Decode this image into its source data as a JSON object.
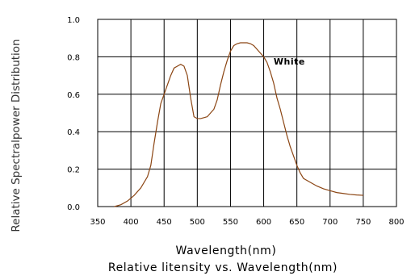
{
  "chart_data": {
    "type": "line",
    "title": "",
    "subtitle": "Relative litensity vs. Wavelength(nm)",
    "xlabel": "Wavelength(nm)",
    "ylabel": "Relative Spectralpower Distribution",
    "xlim": [
      350,
      800
    ],
    "ylim": [
      0,
      1.0
    ],
    "x_ticks": [
      "350",
      "400",
      "450",
      "500",
      "550",
      "600",
      "650",
      "700",
      "750",
      "800"
    ],
    "y_ticks": [
      "0.0",
      "0.2",
      "0.4",
      "0.6",
      "0.8",
      "1.0"
    ],
    "grid": true,
    "line_color": "#8B4513",
    "series": [
      {
        "name": "White",
        "x": [
          375,
          385,
          395,
          405,
          415,
          425,
          430,
          435,
          440,
          445,
          450,
          455,
          460,
          465,
          470,
          475,
          480,
          485,
          490,
          495,
          500,
          505,
          510,
          515,
          520,
          525,
          530,
          535,
          540,
          545,
          550,
          555,
          560,
          565,
          570,
          575,
          580,
          585,
          590,
          595,
          600,
          605,
          610,
          615,
          620,
          625,
          630,
          635,
          640,
          645,
          650,
          655,
          660,
          665,
          670,
          680,
          690,
          700,
          710,
          720,
          730,
          740,
          750
        ],
        "y": [
          0.0,
          0.01,
          0.03,
          0.06,
          0.1,
          0.16,
          0.22,
          0.34,
          0.45,
          0.55,
          0.6,
          0.65,
          0.7,
          0.74,
          0.75,
          0.76,
          0.75,
          0.7,
          0.58,
          0.48,
          0.47,
          0.47,
          0.475,
          0.48,
          0.5,
          0.52,
          0.57,
          0.65,
          0.72,
          0.78,
          0.83,
          0.86,
          0.87,
          0.875,
          0.875,
          0.875,
          0.87,
          0.86,
          0.84,
          0.82,
          0.8,
          0.77,
          0.72,
          0.66,
          0.58,
          0.52,
          0.45,
          0.38,
          0.32,
          0.27,
          0.22,
          0.18,
          0.15,
          0.14,
          0.13,
          0.11,
          0.095,
          0.085,
          0.075,
          0.07,
          0.065,
          0.062,
          0.06
        ]
      }
    ],
    "annotations": [
      {
        "text": "White",
        "x": 615,
        "y": 0.75
      }
    ]
  }
}
